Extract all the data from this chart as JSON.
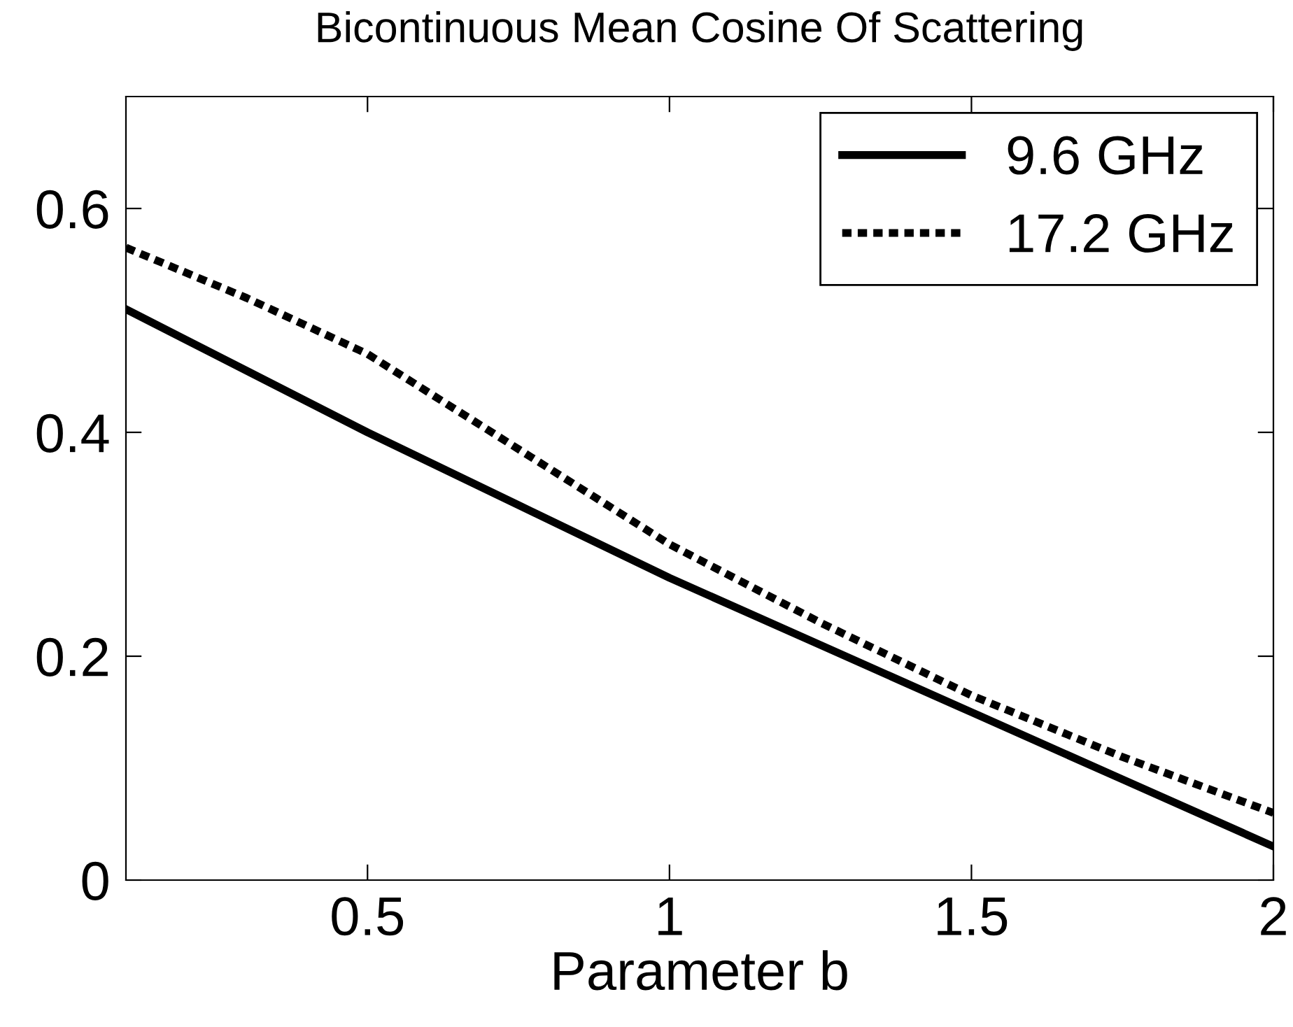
{
  "chart_data": {
    "type": "line",
    "title": "Bicontinuous Mean Cosine Of Scattering",
    "xlabel": "Parameter b",
    "x": [
      0.1,
      0.3,
      0.5,
      0.75,
      1,
      1.25,
      1.5,
      1.75,
      2
    ],
    "series": [
      {
        "name": "9.6 GHz",
        "color": "#000000",
        "line_style": "solid",
        "values": [
          0.51,
          0.455,
          0.4,
          0.335,
          0.27,
          0.21,
          0.15,
          0.09,
          0.03
        ]
      },
      {
        "name": "17.2 GHz",
        "color": "#000000",
        "line_style": "dotted",
        "values": [
          0.565,
          0.52,
          0.47,
          0.385,
          0.3,
          0.23,
          0.165,
          0.11,
          0.06
        ]
      }
    ],
    "xlim": [
      0.1,
      2
    ],
    "ylim": [
      0,
      0.7
    ],
    "xticks": [
      0.5,
      1,
      1.5,
      2
    ],
    "yticks": [
      0,
      0.2,
      0.4,
      0.6
    ],
    "grid": false,
    "legend": "top right",
    "marker": "none"
  }
}
